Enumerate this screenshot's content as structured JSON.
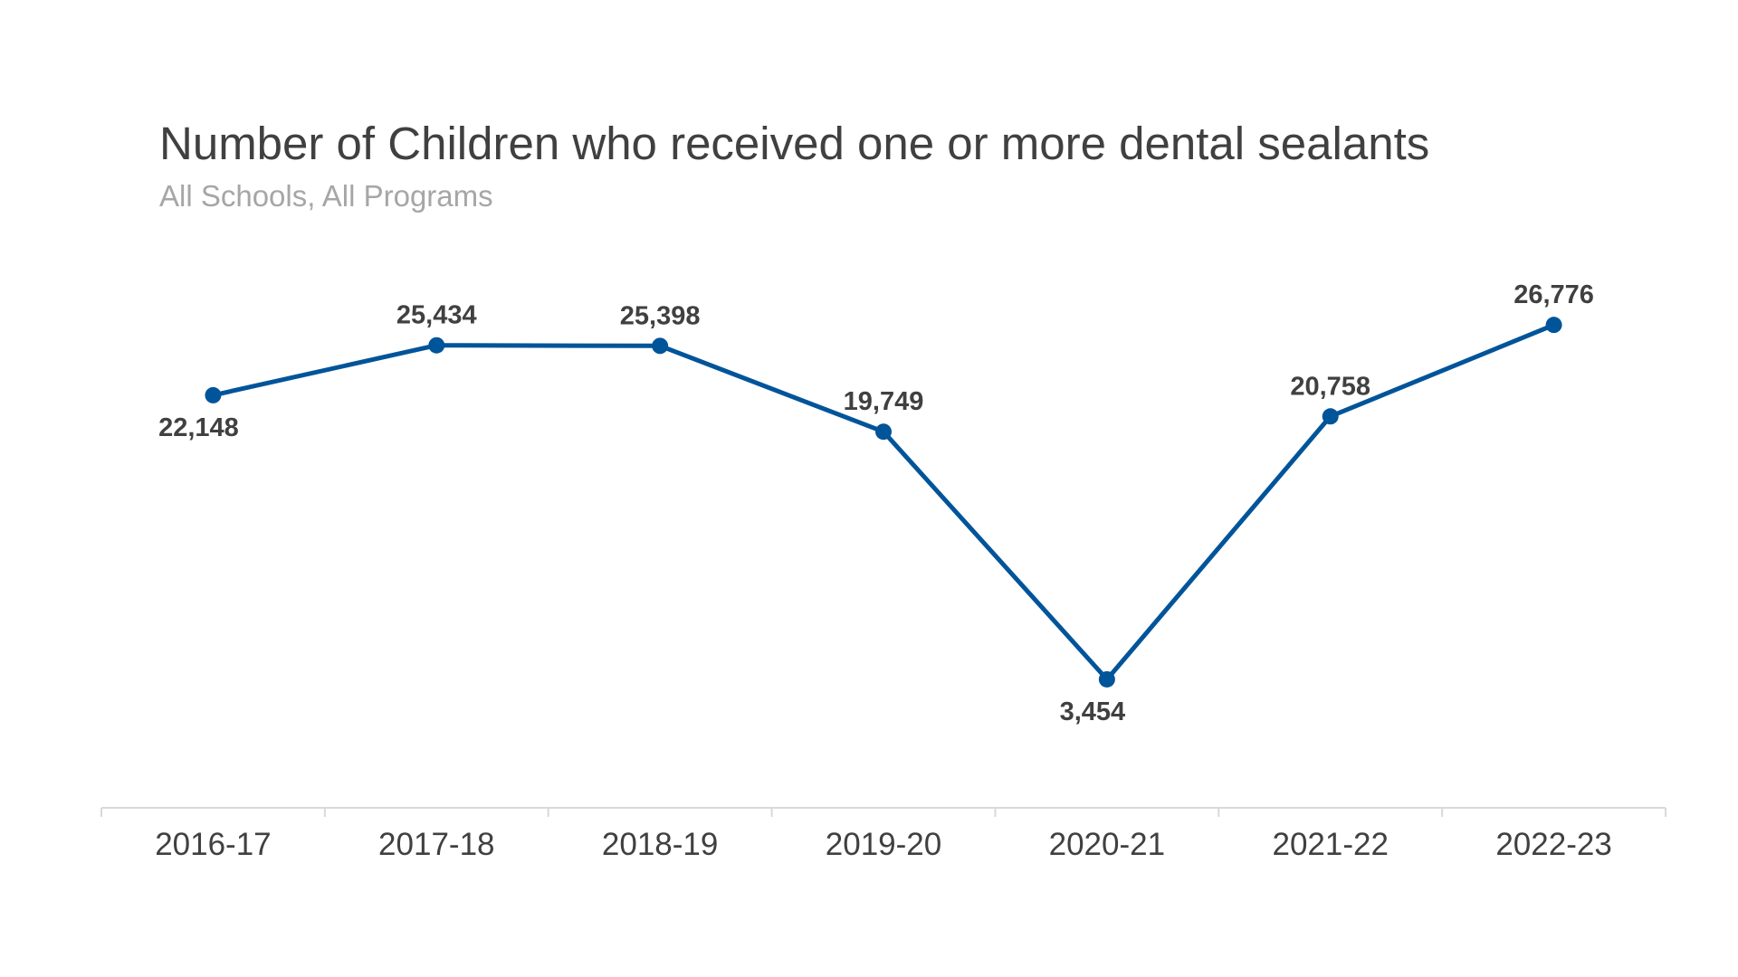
{
  "chart_data": {
    "type": "line",
    "title": "Number of Children who received one or more dental sealants",
    "subtitle": "All Schools, All Programs",
    "categories": [
      "2016-17",
      "2017-18",
      "2018-19",
      "2019-20",
      "2020-21",
      "2021-22",
      "2022-23"
    ],
    "series": [
      {
        "values": [
          22148,
          25434,
          25398,
          19749,
          3454,
          20758,
          26776
        ],
        "labels": [
          "22,148",
          "25,434",
          "25,398",
          "19,749",
          "3,454",
          "20,758",
          "26,776"
        ],
        "color": "#00549a"
      }
    ],
    "xlabel": "",
    "ylabel": "",
    "ylim": [
      -5000,
      30000
    ],
    "y_axis_visible": false,
    "grid": false,
    "legend": "none",
    "axis_color": "#d9d9d9"
  }
}
